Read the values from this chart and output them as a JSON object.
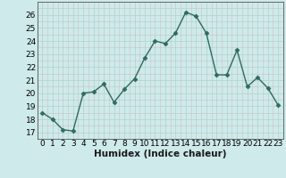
{
  "x": [
    0,
    1,
    2,
    3,
    4,
    5,
    6,
    7,
    8,
    9,
    10,
    11,
    12,
    13,
    14,
    15,
    16,
    17,
    18,
    19,
    20,
    21,
    22,
    23
  ],
  "y": [
    18.5,
    18.0,
    17.2,
    17.1,
    20.0,
    20.1,
    20.7,
    19.3,
    20.3,
    21.1,
    22.7,
    24.0,
    23.8,
    24.6,
    26.2,
    25.9,
    24.6,
    21.4,
    21.4,
    23.3,
    20.5,
    21.2,
    20.4,
    19.1
  ],
  "line_color": "#2e6b5e",
  "marker": "D",
  "markersize": 2.5,
  "linewidth": 1.0,
  "bg_color": "#ceeaea",
  "grid_major_color": "#b8d4d0",
  "grid_minor_color": "#c8e0dc",
  "xlabel": "Humidex (Indice chaleur)",
  "xlim": [
    -0.5,
    23.5
  ],
  "ylim": [
    16.5,
    27.0
  ],
  "yticks": [
    17,
    18,
    19,
    20,
    21,
    22,
    23,
    24,
    25,
    26
  ],
  "xticks": [
    0,
    1,
    2,
    3,
    4,
    5,
    6,
    7,
    8,
    9,
    10,
    11,
    12,
    13,
    14,
    15,
    16,
    17,
    18,
    19,
    20,
    21,
    22,
    23
  ],
  "tick_fontsize": 6.5,
  "xlabel_fontsize": 7.5,
  "spine_color": "#555555"
}
